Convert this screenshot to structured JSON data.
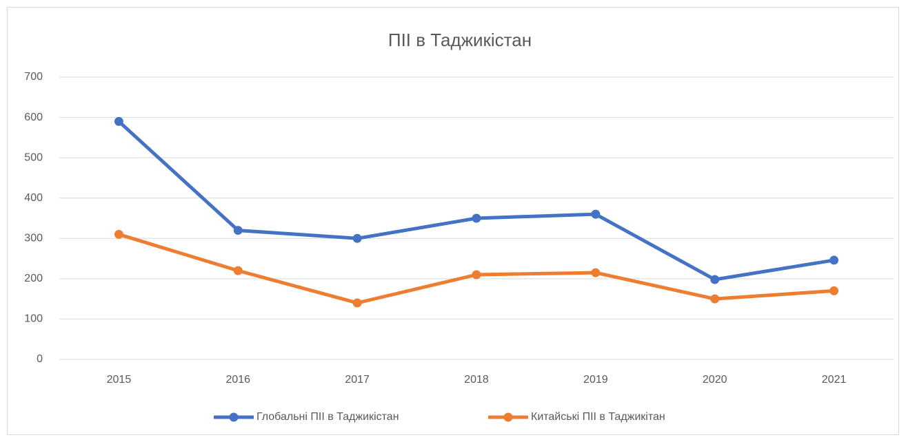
{
  "chart_data": {
    "type": "line",
    "title": "ПІІ в Таджикістан",
    "categories": [
      "2015",
      "2016",
      "2017",
      "2018",
      "2019",
      "2020",
      "2021"
    ],
    "series": [
      {
        "name": "Глобальні ПІІ в Таджикістан",
        "color": "#4472c4",
        "values": [
          590,
          320,
          300,
          350,
          360,
          198,
          246
        ]
      },
      {
        "name": "Китайські ПІІ в Таджикітан",
        "color": "#ed7d31",
        "values": [
          310,
          220,
          140,
          210,
          215,
          150,
          170
        ]
      }
    ],
    "ylim": [
      0,
      700
    ],
    "yticks": [
      0,
      100,
      200,
      300,
      400,
      500,
      600,
      700
    ],
    "grid": true,
    "legend": "bottom"
  }
}
